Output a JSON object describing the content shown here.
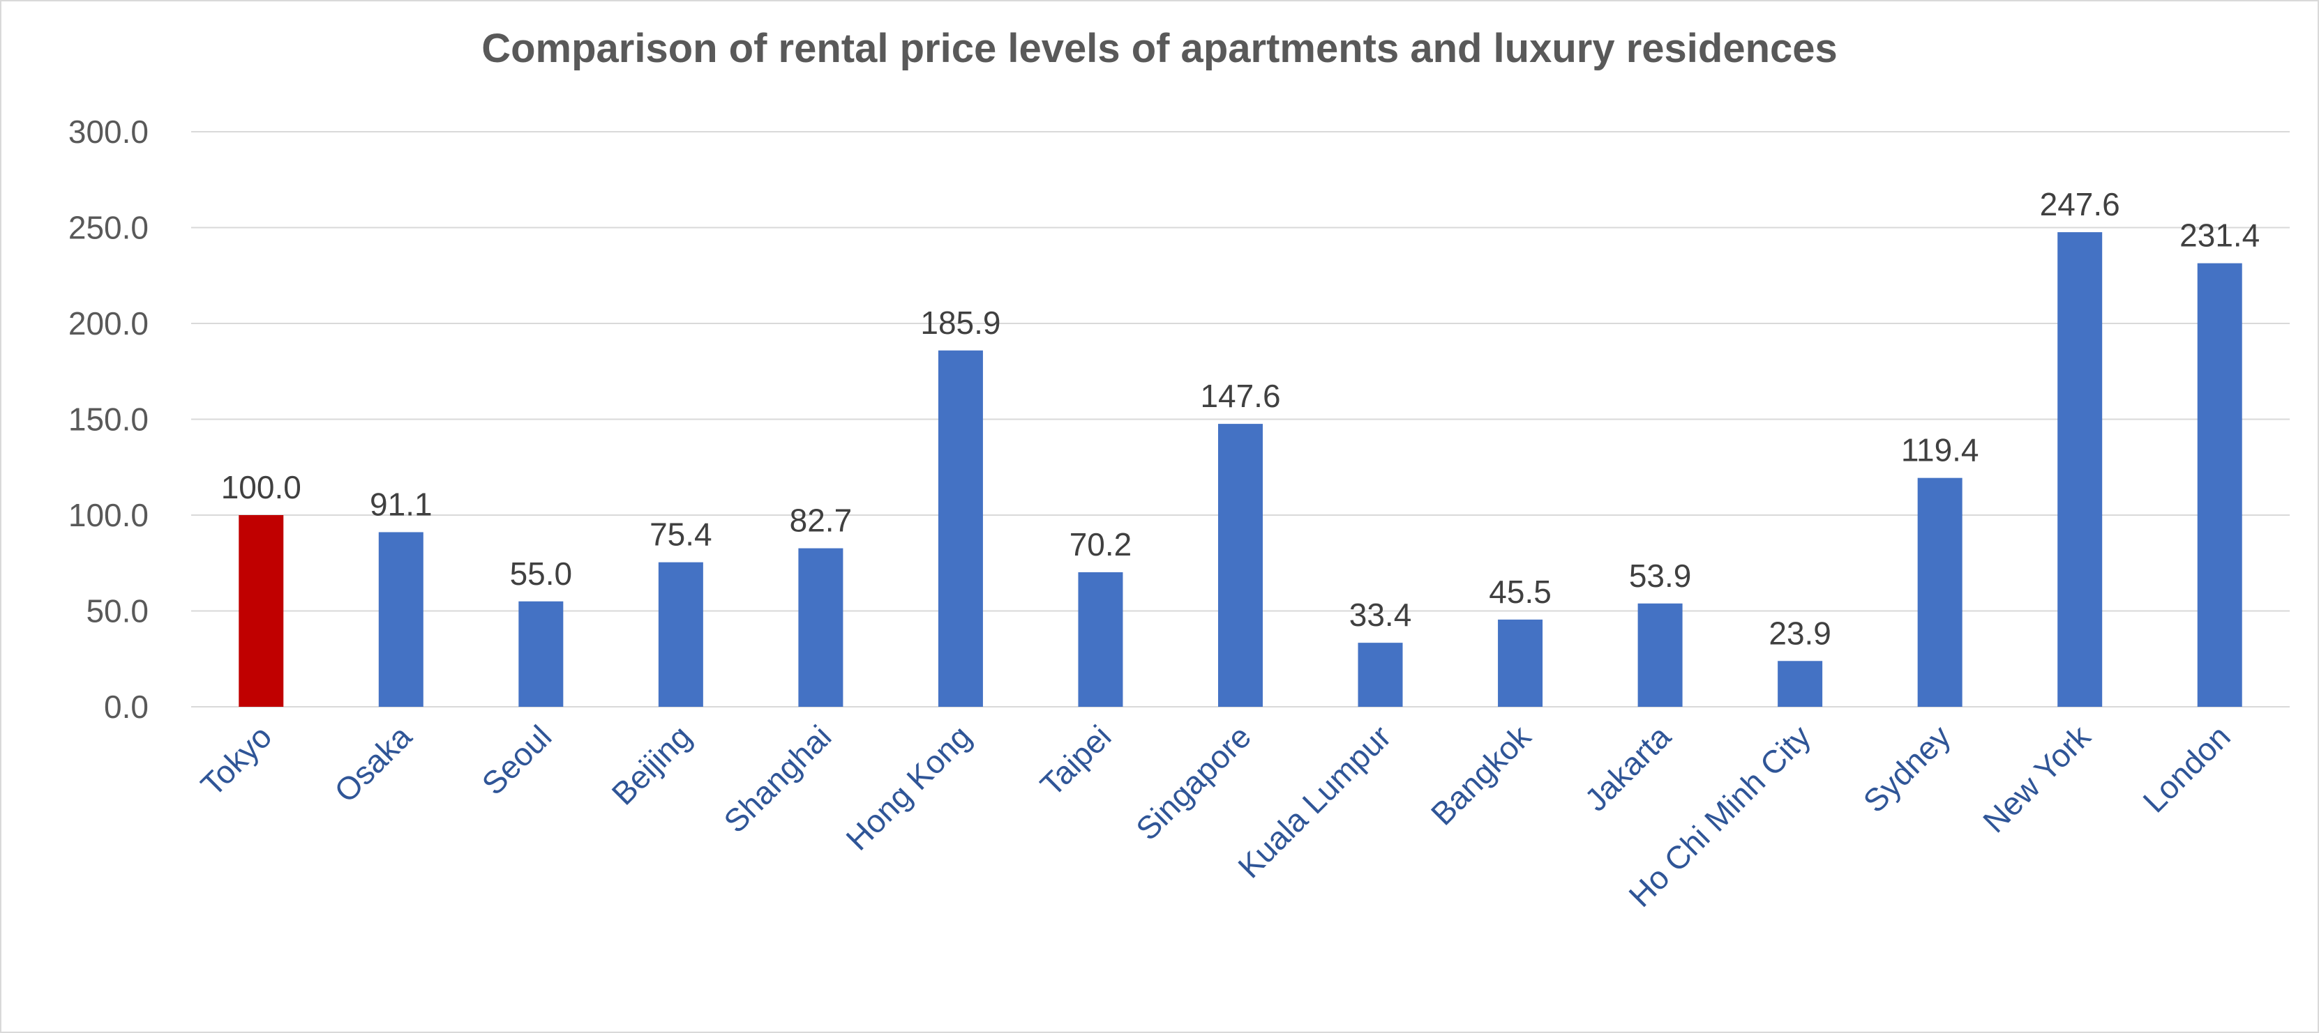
{
  "chart_data": {
    "type": "bar",
    "title": "Comparison of rental price levels of apartments and luxury residences",
    "xlabel": "",
    "ylabel": "",
    "categories": [
      "Tokyo",
      "Osaka",
      "Seoul",
      "Beijing",
      "Shanghai",
      "Hong Kong",
      "Taipei",
      "Singapore",
      "Kuala Lumpur",
      "Bangkok",
      "Jakarta",
      "Ho Chi Minh City",
      "Sydney",
      "New York",
      "London"
    ],
    "values": [
      100.0,
      91.1,
      55.0,
      75.4,
      82.7,
      185.9,
      70.2,
      147.6,
      33.4,
      45.5,
      53.9,
      23.9,
      119.4,
      247.6,
      231.4
    ],
    "value_labels": [
      "100.0",
      "91.1",
      "55.0",
      "75.4",
      "82.7",
      "185.9",
      "70.2",
      "147.6",
      "33.4",
      "45.5",
      "53.9",
      "23.9",
      "119.4",
      "247.6",
      "231.4"
    ],
    "highlight_category": "Tokyo",
    "ylim": [
      0,
      300
    ],
    "yticks": [
      0,
      50,
      100,
      150,
      200,
      250,
      300
    ],
    "ytick_labels": [
      "0.0",
      "50.0",
      "100.0",
      "150.0",
      "200.0",
      "250.0",
      "300.0"
    ],
    "grid": true,
    "legend": "none",
    "colors": {
      "bar": "#4472c4",
      "highlight_bar": "#c00000",
      "gridline": "#d9d9d9",
      "category_label": "#2f5597",
      "tick_label": "#595959",
      "data_label": "#404040"
    }
  }
}
